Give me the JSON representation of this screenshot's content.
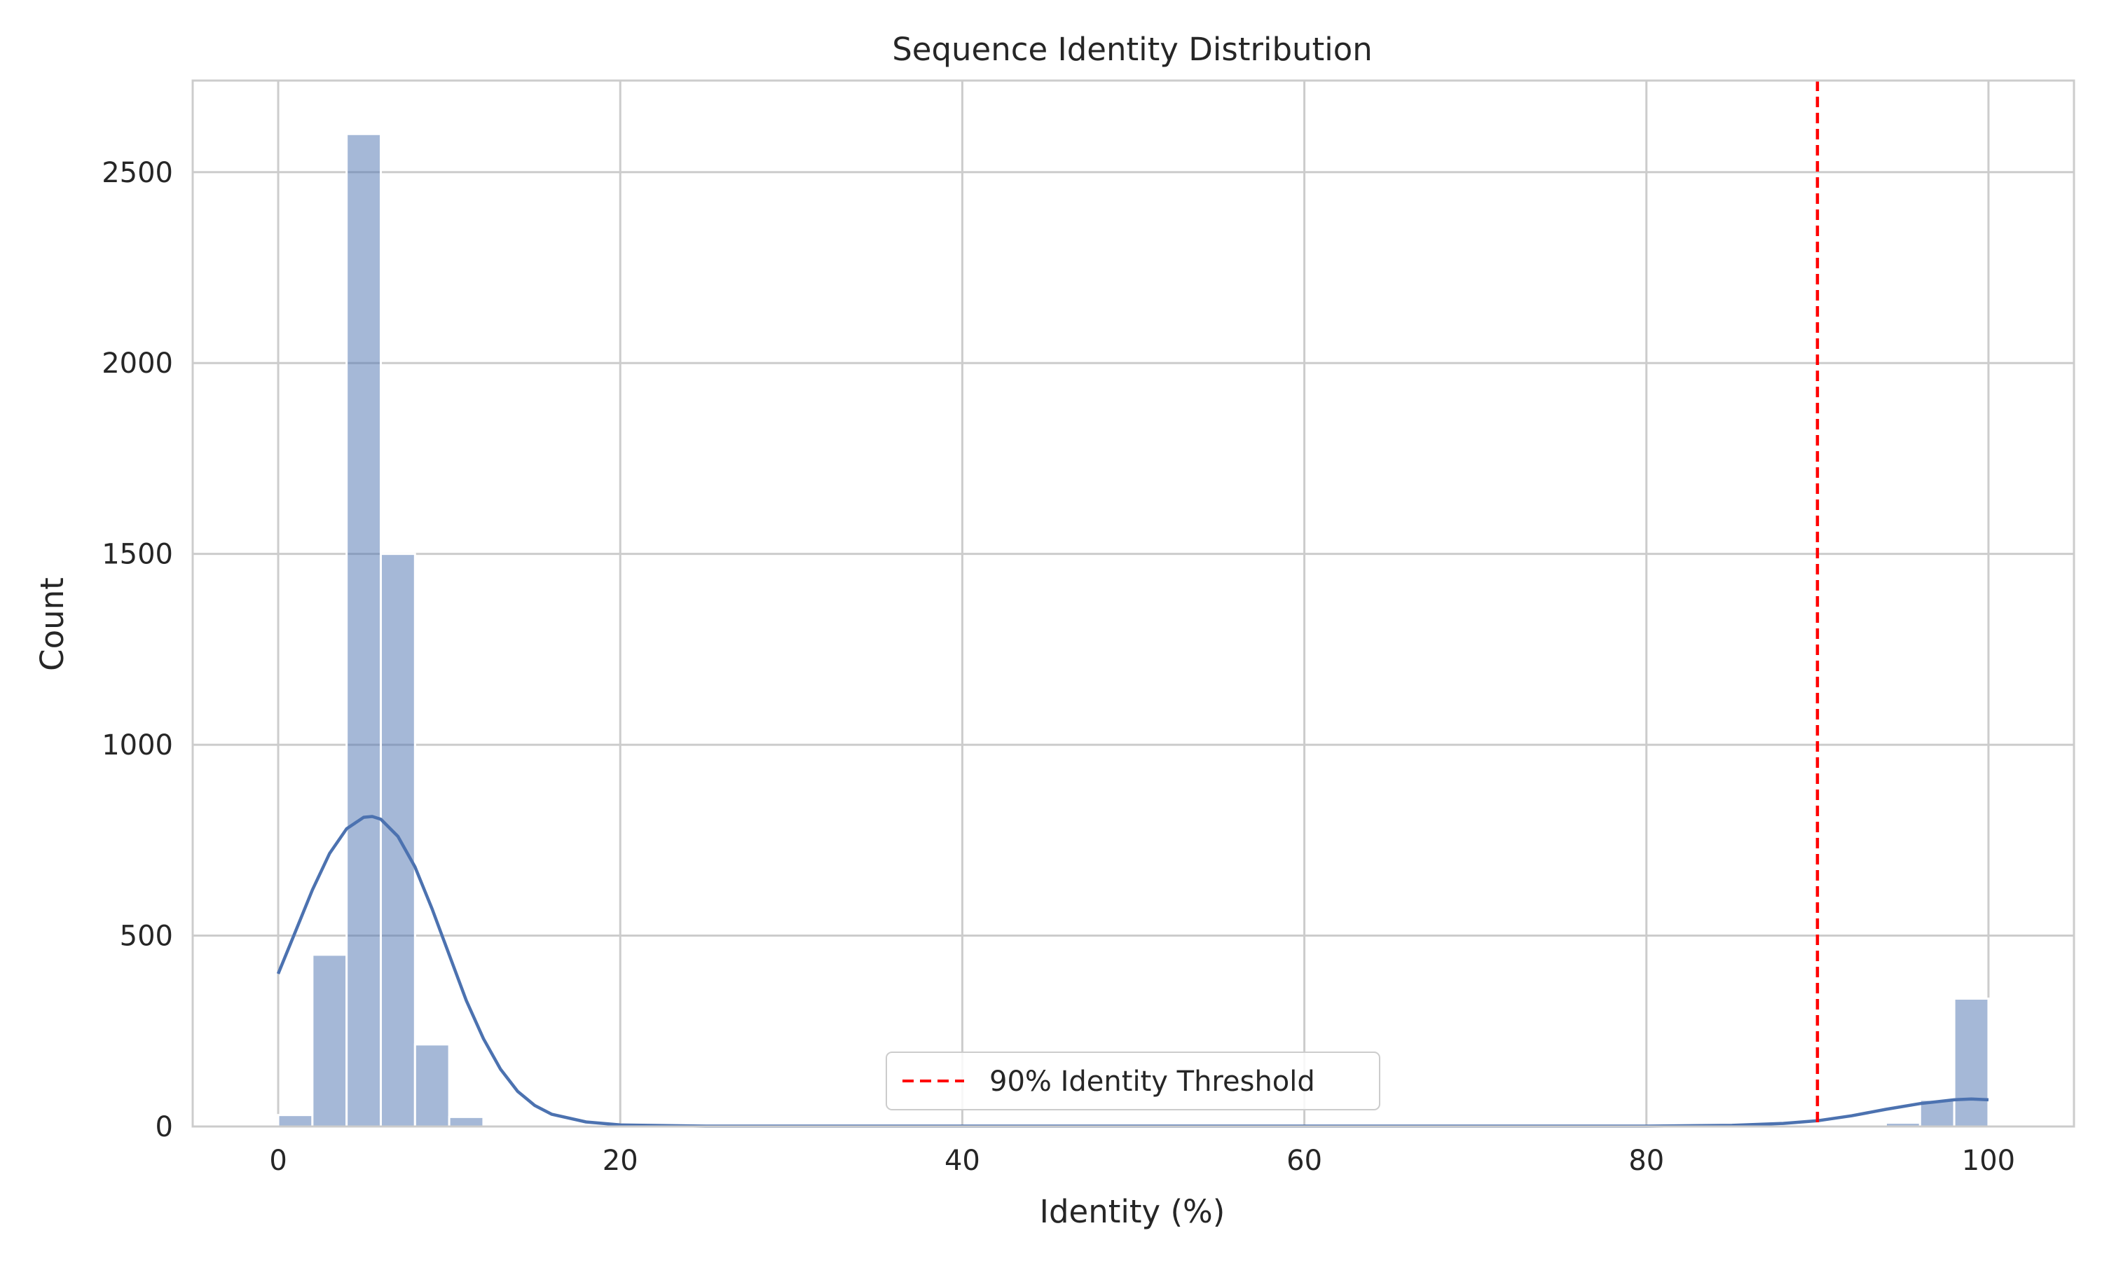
{
  "chart_data": {
    "type": "bar",
    "title": "Sequence Identity Distribution",
    "xlabel": "Identity (%)",
    "ylabel": "Count",
    "xlim": [
      -5,
      105
    ],
    "ylim": [
      0,
      2740
    ],
    "grid": true,
    "x_ticks": [
      0,
      20,
      40,
      60,
      80,
      100
    ],
    "y_ticks": [
      0,
      500,
      1000,
      1500,
      2000,
      2500
    ],
    "bin_width": 2,
    "bins": [
      {
        "x0": 0,
        "x1": 2,
        "count": 30
      },
      {
        "x0": 2,
        "x1": 4,
        "count": 450
      },
      {
        "x0": 4,
        "x1": 6,
        "count": 2600
      },
      {
        "x0": 6,
        "x1": 8,
        "count": 1500
      },
      {
        "x0": 8,
        "x1": 10,
        "count": 215
      },
      {
        "x0": 10,
        "x1": 12,
        "count": 25
      },
      {
        "x0": 94,
        "x1": 96,
        "count": 10
      },
      {
        "x0": 96,
        "x1": 98,
        "count": 70
      },
      {
        "x0": 98,
        "x1": 100,
        "count": 335
      }
    ],
    "kde": {
      "x": [
        0,
        1,
        2,
        3,
        4,
        5,
        5.5,
        6,
        7,
        8,
        9,
        10,
        11,
        12,
        13,
        14,
        15,
        16,
        18,
        20,
        25,
        80,
        85,
        88,
        90,
        92,
        94,
        96,
        98,
        99,
        100
      ],
      "y": [
        400,
        510,
        620,
        715,
        780,
        810,
        812,
        805,
        760,
        680,
        570,
        450,
        330,
        230,
        150,
        92,
        55,
        32,
        12,
        4,
        1,
        1,
        3,
        8,
        15,
        28,
        45,
        60,
        70,
        72,
        70
      ]
    },
    "threshold": {
      "x": 90,
      "label": "90% Identity Threshold",
      "color": "#ff0000"
    },
    "legend": {
      "position": "bottom-center",
      "entries": [
        "90% Identity Threshold"
      ]
    },
    "colors": {
      "bars": "#4c72b0",
      "kde": "#4c72b0",
      "grid": "#cccccc",
      "spines": "#cccccc"
    }
  }
}
